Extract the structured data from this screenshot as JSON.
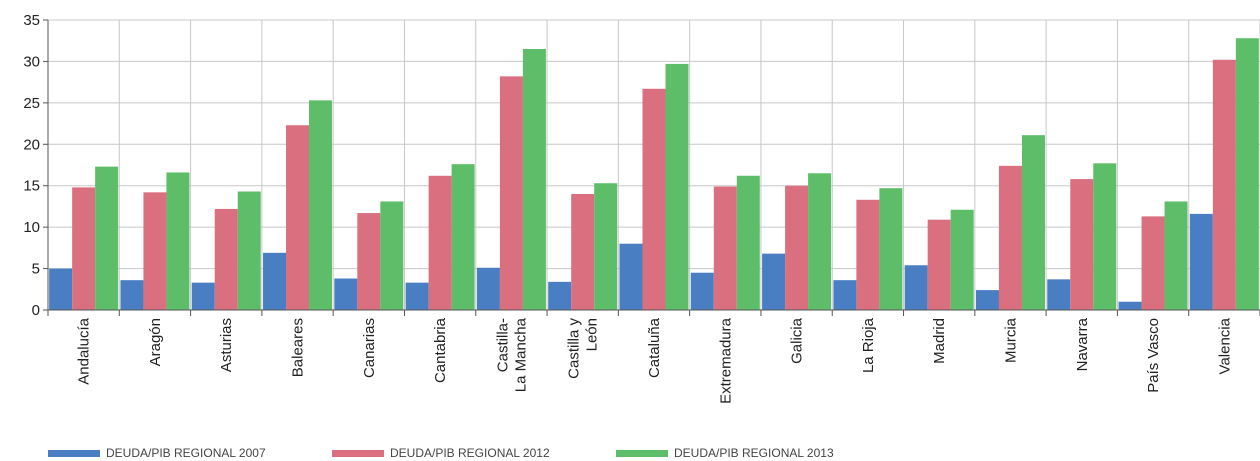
{
  "chart_data": {
    "type": "bar",
    "title": "",
    "xlabel": "",
    "ylabel": "",
    "ylim": [
      0,
      35
    ],
    "yticks": [
      0,
      5,
      10,
      15,
      20,
      25,
      30,
      35
    ],
    "grid": "vertical separators and horizontal gridlines",
    "legend_position": "bottom",
    "categories": [
      [
        "Andalucía"
      ],
      [
        "Aragón"
      ],
      [
        "Asturias"
      ],
      [
        "Baleares"
      ],
      [
        "Canarias"
      ],
      [
        "Cantabria"
      ],
      [
        "Castilla-",
        "La Mancha"
      ],
      [
        "Castilla y",
        "León"
      ],
      [
        "Cataluña"
      ],
      [
        "Extremadura"
      ],
      [
        "Galicia"
      ],
      [
        "La Rioja"
      ],
      [
        "Madrid"
      ],
      [
        "Murcia"
      ],
      [
        "Navarra"
      ],
      [
        "País Vasco"
      ],
      [
        "Valencia"
      ]
    ],
    "series": [
      {
        "name": "DEUDA/PIB REGIONAL 2007",
        "color": "#4a7ec2",
        "values": [
          5.0,
          3.6,
          3.3,
          6.9,
          3.8,
          3.3,
          5.1,
          3.4,
          8.0,
          4.5,
          6.8,
          3.6,
          5.4,
          2.4,
          3.7,
          1.0,
          11.6
        ]
      },
      {
        "name": "DEUDA/PIB REGIONAL 2012",
        "color": "#da6f80",
        "values": [
          14.8,
          14.2,
          12.2,
          22.3,
          11.7,
          16.2,
          28.2,
          14.0,
          26.7,
          14.9,
          15.0,
          13.3,
          10.9,
          17.4,
          15.8,
          11.3,
          30.2
        ]
      },
      {
        "name": "DEUDA/PIB REGIONAL 2013",
        "color": "#5dbd68",
        "values": [
          17.3,
          16.6,
          14.3,
          25.3,
          13.1,
          17.6,
          31.5,
          15.3,
          29.7,
          16.2,
          16.5,
          14.7,
          12.1,
          21.1,
          17.7,
          13.1,
          32.8
        ]
      }
    ]
  }
}
